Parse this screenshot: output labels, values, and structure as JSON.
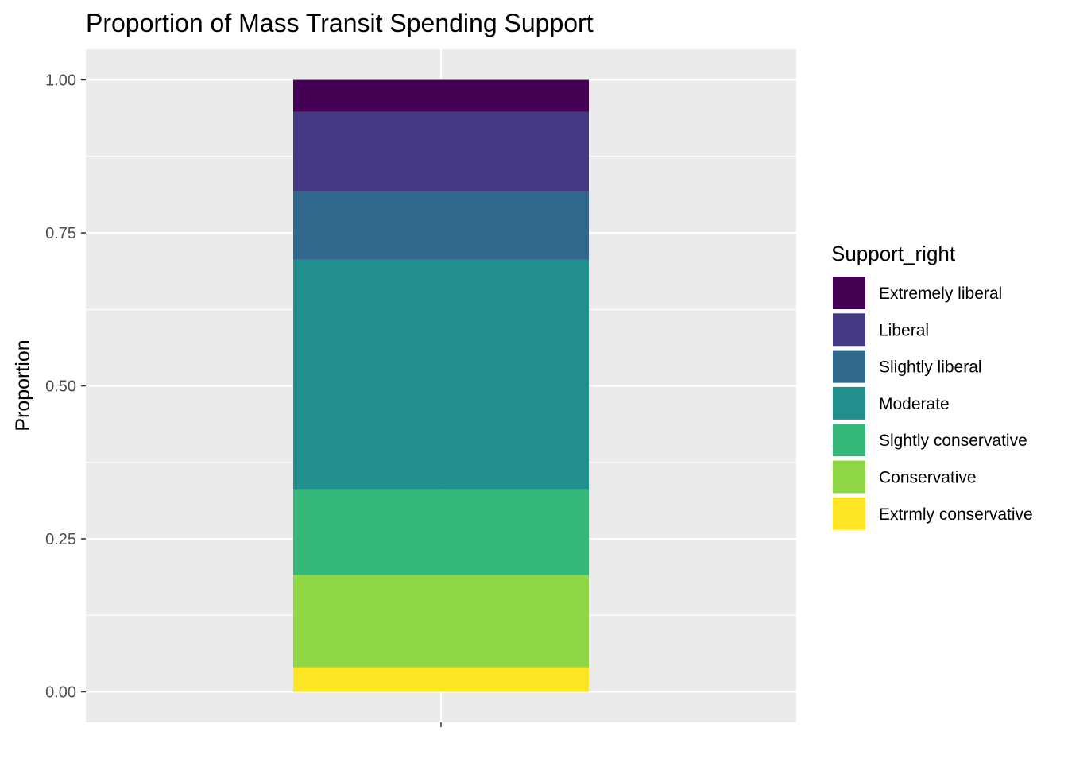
{
  "chart_data": {
    "type": "bar",
    "stacked": true,
    "title": "Proportion of Mass Transit Spending Support",
    "xlabel": "",
    "ylabel": "Proportion",
    "ylim": [
      -0.05,
      1.05
    ],
    "yticks": [
      "0.00",
      "0.25",
      "0.50",
      "0.75",
      "1.00"
    ],
    "categories": [
      ""
    ],
    "legend": {
      "title": "Support_right",
      "position": "right"
    },
    "grid": true,
    "series": [
      {
        "name": "Extremely liberal",
        "values": [
          0.052
        ],
        "color": "#440154"
      },
      {
        "name": "Liberal",
        "values": [
          0.13
        ],
        "color": "#443A83"
      },
      {
        "name": "Slightly liberal",
        "values": [
          0.112
        ],
        "color": "#31688E"
      },
      {
        "name": "Moderate",
        "values": [
          0.375
        ],
        "color": "#21908C"
      },
      {
        "name": "Slghtly conservative",
        "values": [
          0.14
        ],
        "color": "#35B779"
      },
      {
        "name": "Conservative",
        "values": [
          0.151
        ],
        "color": "#8FD744"
      },
      {
        "name": "Extrmly conservative",
        "values": [
          0.04
        ],
        "color": "#FDE725"
      }
    ]
  }
}
